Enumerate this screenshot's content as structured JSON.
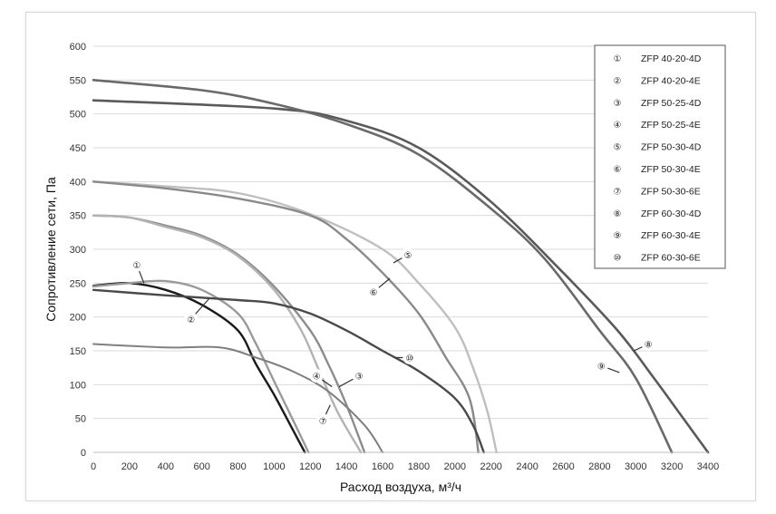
{
  "chart_data": {
    "type": "line",
    "xlabel": "Расход воздуха, м³/ч",
    "ylabel": "Сопротивление сети, Па",
    "xlim": [
      0,
      3400
    ],
    "ylim": [
      0,
      600
    ],
    "x_ticks": [
      "0",
      "200",
      "400",
      "600",
      "800",
      "1000",
      "1200",
      "1400",
      "1600",
      "1800",
      "2000",
      "2200",
      "2400",
      "2600",
      "2800",
      "3000",
      "3200",
      "3400"
    ],
    "y_ticks": [
      "0",
      "50",
      "100",
      "150",
      "200",
      "250",
      "300",
      "350",
      "400",
      "450",
      "500",
      "550",
      "600"
    ],
    "grid": "horizontal",
    "legend_position": "top-right",
    "series": [
      {
        "marker": "①",
        "name": "ZFP 40-20-4D",
        "color": "#1a1a1a",
        "width": 2.4,
        "points": [
          [
            0,
            246
          ],
          [
            200,
            250
          ],
          [
            400,
            240
          ],
          [
            600,
            218
          ],
          [
            800,
            180
          ],
          [
            900,
            130
          ],
          [
            1000,
            85
          ],
          [
            1100,
            35
          ],
          [
            1170,
            0
          ]
        ]
      },
      {
        "marker": "②",
        "name": "ZFP 40-20-4E",
        "color": "#9a9a9a",
        "width": 2.4,
        "points": [
          [
            0,
            245
          ],
          [
            200,
            250
          ],
          [
            400,
            253
          ],
          [
            600,
            240
          ],
          [
            800,
            205
          ],
          [
            900,
            160
          ],
          [
            1000,
            105
          ],
          [
            1100,
            50
          ],
          [
            1190,
            0
          ]
        ]
      },
      {
        "marker": "③",
        "name": "ZFP 50-25-4D",
        "color": "#8c8c8c",
        "width": 2.4,
        "points": [
          [
            0,
            350
          ],
          [
            200,
            347
          ],
          [
            400,
            335
          ],
          [
            600,
            320
          ],
          [
            800,
            292
          ],
          [
            1000,
            245
          ],
          [
            1200,
            180
          ],
          [
            1300,
            130
          ],
          [
            1400,
            70
          ],
          [
            1500,
            0
          ]
        ]
      },
      {
        "marker": "④",
        "name": "ZFP 50-25-4E",
        "color": "#b3b3b3",
        "width": 2.4,
        "points": [
          [
            0,
            350
          ],
          [
            200,
            347
          ],
          [
            400,
            333
          ],
          [
            600,
            318
          ],
          [
            800,
            290
          ],
          [
            1000,
            240
          ],
          [
            1150,
            180
          ],
          [
            1250,
            120
          ],
          [
            1350,
            60
          ],
          [
            1480,
            0
          ]
        ]
      },
      {
        "marker": "⑤",
        "name": "ZFP 50-30-4D",
        "color": "#bfbfbf",
        "width": 2.4,
        "points": [
          [
            0,
            400
          ],
          [
            400,
            393
          ],
          [
            800,
            383
          ],
          [
            1200,
            352
          ],
          [
            1600,
            300
          ],
          [
            1800,
            250
          ],
          [
            2000,
            185
          ],
          [
            2100,
            125
          ],
          [
            2180,
            60
          ],
          [
            2230,
            0
          ]
        ]
      },
      {
        "marker": "⑥",
        "name": "ZFP 50-30-4E",
        "color": "#8a8a8a",
        "width": 2.4,
        "points": [
          [
            0,
            400
          ],
          [
            400,
            390
          ],
          [
            800,
            375
          ],
          [
            1200,
            350
          ],
          [
            1400,
            315
          ],
          [
            1600,
            265
          ],
          [
            1800,
            205
          ],
          [
            1950,
            140
          ],
          [
            2080,
            80
          ],
          [
            2130,
            0
          ]
        ]
      },
      {
        "marker": "⑦",
        "name": "ZFP 50-30-6E",
        "color": "#7f7f7f",
        "width": 2.0,
        "points": [
          [
            0,
            160
          ],
          [
            400,
            155
          ],
          [
            700,
            155
          ],
          [
            900,
            140
          ],
          [
            1100,
            120
          ],
          [
            1300,
            90
          ],
          [
            1500,
            40
          ],
          [
            1600,
            0
          ]
        ]
      },
      {
        "marker": "⑧",
        "name": "ZFP 60-30-4D",
        "color": "#5a5a5a",
        "width": 2.6,
        "points": [
          [
            0,
            520
          ],
          [
            1000,
            508
          ],
          [
            1400,
            490
          ],
          [
            1800,
            450
          ],
          [
            2200,
            370
          ],
          [
            2600,
            265
          ],
          [
            2900,
            180
          ],
          [
            3100,
            110
          ],
          [
            3250,
            55
          ],
          [
            3400,
            0
          ]
        ]
      },
      {
        "marker": "⑨",
        "name": "ZFP 60-30-4E",
        "color": "#6a6a6a",
        "width": 2.6,
        "points": [
          [
            0,
            550
          ],
          [
            600,
            535
          ],
          [
            1000,
            515
          ],
          [
            1400,
            485
          ],
          [
            1800,
            440
          ],
          [
            2200,
            360
          ],
          [
            2500,
            285
          ],
          [
            2800,
            180
          ],
          [
            3000,
            110
          ],
          [
            3200,
            0
          ]
        ]
      },
      {
        "marker": "⑩",
        "name": "ZFP 60-30-6E",
        "color": "#4a4a4a",
        "width": 2.4,
        "points": [
          [
            0,
            240
          ],
          [
            400,
            232
          ],
          [
            800,
            225
          ],
          [
            1000,
            220
          ],
          [
            1200,
            205
          ],
          [
            1400,
            180
          ],
          [
            1600,
            150
          ],
          [
            1800,
            120
          ],
          [
            2000,
            80
          ],
          [
            2100,
            40
          ],
          [
            2160,
            0
          ]
        ]
      }
    ],
    "annotations": [
      {
        "text": "①",
        "label_at": [
          240,
          277
        ],
        "line_to": [
          280,
          250
        ]
      },
      {
        "text": "②",
        "label_at": [
          540,
          197
        ],
        "line_to": [
          640,
          227
        ]
      },
      {
        "text": "③",
        "label_at": [
          1470,
          113
        ],
        "line_to": [
          1360,
          97
        ]
      },
      {
        "text": "④",
        "label_at": [
          1235,
          113
        ],
        "line_to": [
          1320,
          97
        ]
      },
      {
        "text": "⑤",
        "label_at": [
          1740,
          292
        ],
        "line_to": [
          1660,
          280
        ]
      },
      {
        "text": "⑥",
        "label_at": [
          1550,
          237
        ],
        "line_to": [
          1640,
          257
        ]
      },
      {
        "text": "⑦",
        "label_at": [
          1270,
          47
        ],
        "line_to": [
          1310,
          70
        ]
      },
      {
        "text": "⑧",
        "label_at": [
          3070,
          160
        ],
        "line_to": [
          2990,
          150
        ]
      },
      {
        "text": "⑨",
        "label_at": [
          2810,
          128
        ],
        "line_to": [
          2910,
          118
        ]
      },
      {
        "text": "⑩",
        "label_at": [
          1750,
          140
        ],
        "line_to": [
          1670,
          140
        ]
      }
    ]
  }
}
